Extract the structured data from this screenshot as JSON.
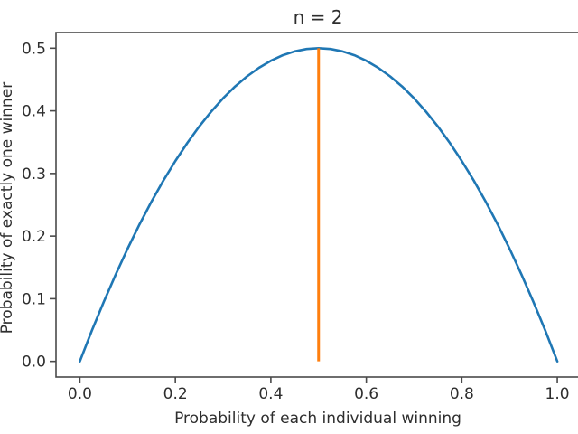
{
  "chart_data": {
    "type": "line",
    "title": "n = 2",
    "xlabel": "Probability of each individual winning",
    "ylabel": "Probability of exactly one winner",
    "xlim": [
      -0.05,
      1.05
    ],
    "ylim": [
      -0.025,
      0.525
    ],
    "xticks": [
      0.0,
      0.2,
      0.4,
      0.6,
      0.8,
      1.0
    ],
    "xtick_labels": [
      "0.0",
      "0.2",
      "0.4",
      "0.6",
      "0.8",
      "1.0"
    ],
    "yticks": [
      0.0,
      0.1,
      0.2,
      0.3,
      0.4,
      0.5
    ],
    "ytick_labels": [
      "0.0",
      "0.1",
      "0.2",
      "0.3",
      "0.4",
      "0.5"
    ],
    "grid": false,
    "legend": "none",
    "series": [
      {
        "color": "#1f77b4",
        "x": [
          0,
          0.025,
          0.05,
          0.075,
          0.1,
          0.125,
          0.15,
          0.175,
          0.2,
          0.225,
          0.25,
          0.275,
          0.3,
          0.325,
          0.35,
          0.375,
          0.4,
          0.425,
          0.45,
          0.475,
          0.5,
          0.525,
          0.55,
          0.575,
          0.6,
          0.625,
          0.65,
          0.675,
          0.7,
          0.725,
          0.75,
          0.775,
          0.8,
          0.825,
          0.85,
          0.875,
          0.9,
          0.925,
          0.95,
          0.975,
          1
        ],
        "y": [
          0,
          0.04875,
          0.095,
          0.13875,
          0.18,
          0.21875,
          0.255,
          0.28875,
          0.32,
          0.34875,
          0.375,
          0.39875,
          0.42,
          0.43875,
          0.455,
          0.46875,
          0.48,
          0.48875,
          0.495,
          0.49875,
          0.5,
          0.49875,
          0.495,
          0.48875,
          0.48,
          0.46875,
          0.455,
          0.43875,
          0.42,
          0.39875,
          0.375,
          0.34875,
          0.32,
          0.28875,
          0.255,
          0.21875,
          0.18,
          0.13875,
          0.095,
          0.04875,
          0
        ]
      }
    ],
    "annotations": [
      {
        "type": "vline",
        "x": 0.5,
        "y0": 0.0,
        "y1": 0.5,
        "color": "#ff7f0e"
      }
    ]
  },
  "colors": {
    "curve": "#1f77b4",
    "marker_line": "#ff7f0e",
    "text": "#2e2e2e",
    "spine": "#4a4a4a",
    "background": "#ffffff"
  }
}
